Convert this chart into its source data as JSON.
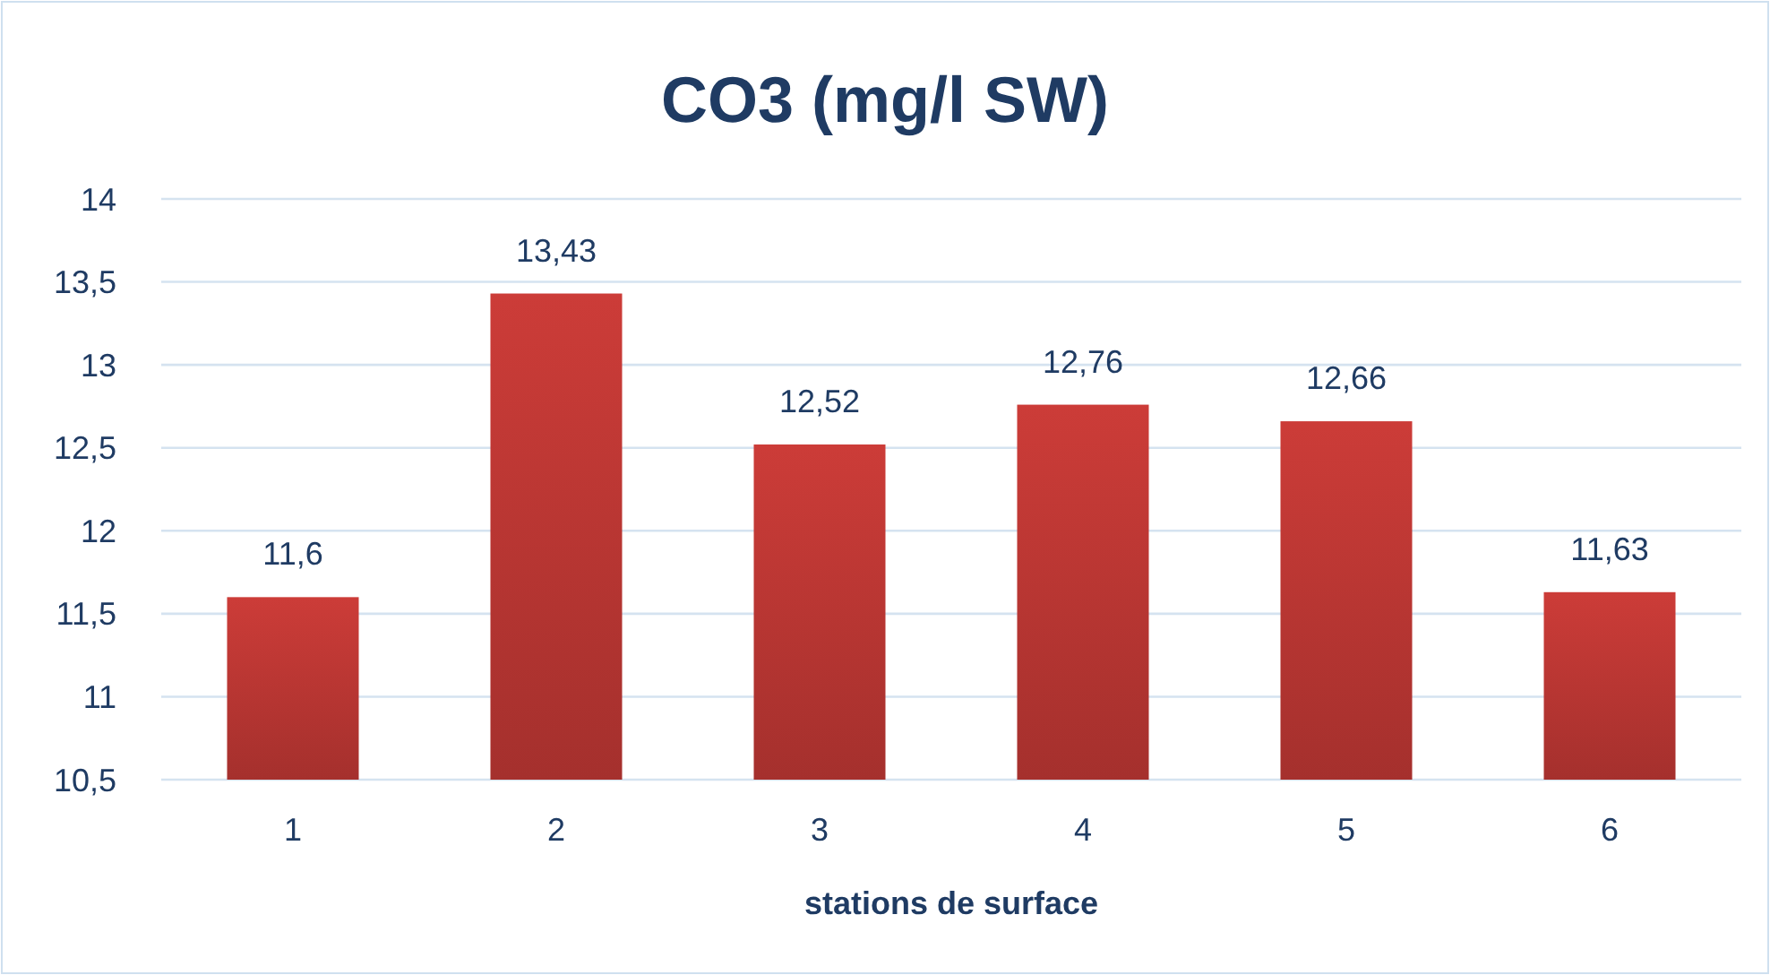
{
  "chart_data": {
    "type": "bar",
    "title": "CO3 (mg/l SW)",
    "xlabel": "stations de surface",
    "categories": [
      "1",
      "2",
      "3",
      "4",
      "5",
      "6"
    ],
    "values": [
      11.6,
      13.43,
      12.52,
      12.76,
      12.66,
      11.63
    ],
    "value_labels": [
      "11,6",
      "13,43",
      "12,52",
      "12,76",
      "12,66",
      "11,63"
    ],
    "color": "#cc3c38",
    "ylim": [
      10.5,
      14
    ],
    "yticks": [
      {
        "value": 10.5,
        "label": "10,5"
      },
      11,
      {
        "value": 11.5,
        "label": "11,5"
      },
      12,
      {
        "value": 12.5,
        "label": "12,5"
      },
      13,
      {
        "value": 13.5,
        "label": "13,5"
      },
      14
    ],
    "grid": "y"
  }
}
